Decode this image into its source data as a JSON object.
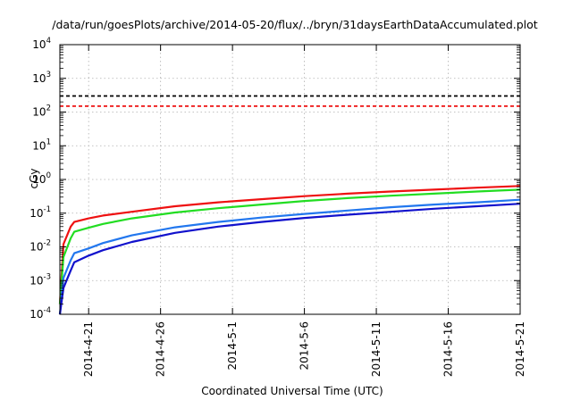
{
  "chart_data": {
    "type": "line",
    "title": "/data/run/goesPlots/archive/2014-05-20/flux/../bryn/31daysEarthDataAccumulated.plot",
    "xlabel": "Coordinated Universal Time (UTC)",
    "ylabel": "cGy",
    "xlim": [
      "2014-04-19",
      "2014-05-21"
    ],
    "ylim": [
      0.0001,
      10000
    ],
    "yscale": "log",
    "grid": true,
    "legend": "none",
    "xticks": [
      "2014-4-21",
      "2014-4-26",
      "2014-5-1",
      "2014-5-6",
      "2014-5-11",
      "2014-5-16",
      "2014-5-21"
    ],
    "yticks": [
      {
        "value": 0.0001,
        "base": "10",
        "exp": "-4"
      },
      {
        "value": 0.001,
        "base": "10",
        "exp": "-3"
      },
      {
        "value": 0.01,
        "base": "10",
        "exp": "-2"
      },
      {
        "value": 0.1,
        "base": "10",
        "exp": "-1"
      },
      {
        "value": 1,
        "base": "10",
        "exp": "0"
      },
      {
        "value": 10,
        "base": "10",
        "exp": "1"
      },
      {
        "value": 100,
        "base": "10",
        "exp": "2"
      },
      {
        "value": 1000,
        "base": "10",
        "exp": "3"
      },
      {
        "value": 10000,
        "base": "10",
        "exp": "4"
      }
    ],
    "reference_lines": [
      {
        "y": 300,
        "color": "#000000",
        "style": "dashed"
      },
      {
        "y": 150,
        "color": "#ee1111",
        "style": "dashed"
      }
    ],
    "series": [
      {
        "color": "#ee1111",
        "x": [
          "2014-04-19",
          "2014-04-19 06:00",
          "2014-04-19 18:00",
          "2014-04-20",
          "2014-04-21",
          "2014-04-22",
          "2014-04-24",
          "2014-04-27",
          "2014-04-30",
          "2014-05-03",
          "2014-05-06",
          "2014-05-09",
          "2014-05-12",
          "2014-05-15",
          "2014-05-18",
          "2014-05-21"
        ],
        "y": [
          0.0002,
          0.012,
          0.04,
          0.055,
          0.07,
          0.085,
          0.11,
          0.16,
          0.21,
          0.26,
          0.32,
          0.38,
          0.44,
          0.5,
          0.57,
          0.64
        ]
      },
      {
        "color": "#22dd22",
        "x": [
          "2014-04-19",
          "2014-04-19 06:00",
          "2014-04-19 18:00",
          "2014-04-20",
          "2014-04-21",
          "2014-04-22",
          "2014-04-24",
          "2014-04-27",
          "2014-04-30",
          "2014-05-03",
          "2014-05-06",
          "2014-05-09",
          "2014-05-12",
          "2014-05-15",
          "2014-05-18",
          "2014-05-21"
        ],
        "y": [
          0.0002,
          0.005,
          0.018,
          0.028,
          0.037,
          0.048,
          0.07,
          0.105,
          0.14,
          0.18,
          0.23,
          0.28,
          0.33,
          0.38,
          0.44,
          0.5
        ]
      },
      {
        "color": "#2277ee",
        "x": [
          "2014-04-19",
          "2014-04-19 06:00",
          "2014-04-19 18:00",
          "2014-04-20",
          "2014-04-21",
          "2014-04-22",
          "2014-04-24",
          "2014-04-27",
          "2014-04-30",
          "2014-05-03",
          "2014-05-06",
          "2014-05-09",
          "2014-05-12",
          "2014-05-15",
          "2014-05-18",
          "2014-05-21"
        ],
        "y": [
          0.0001,
          0.0012,
          0.004,
          0.0065,
          0.009,
          0.013,
          0.022,
          0.038,
          0.055,
          0.074,
          0.095,
          0.12,
          0.15,
          0.18,
          0.21,
          0.25
        ]
      },
      {
        "color": "#1111cc",
        "x": [
          "2014-04-19",
          "2014-04-19 06:00",
          "2014-04-19 18:00",
          "2014-04-20",
          "2014-04-21",
          "2014-04-22",
          "2014-04-24",
          "2014-04-27",
          "2014-04-30",
          "2014-05-03",
          "2014-05-06",
          "2014-05-09",
          "2014-05-12",
          "2014-05-15",
          "2014-05-18",
          "2014-05-21"
        ],
        "y": [
          0.0001,
          0.0006,
          0.002,
          0.0035,
          0.0055,
          0.008,
          0.014,
          0.026,
          0.04,
          0.055,
          0.072,
          0.09,
          0.11,
          0.135,
          0.16,
          0.19
        ]
      }
    ]
  }
}
